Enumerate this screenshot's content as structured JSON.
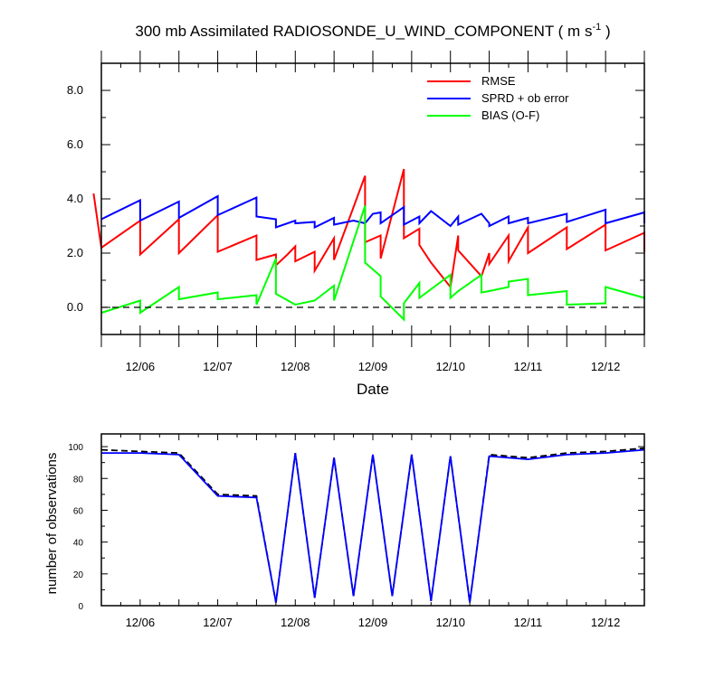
{
  "chart_data": [
    {
      "type": "line",
      "title_prefix": "300 mb Assimilated RADIOSONDE_U_WIND_COMPONENT ( m s",
      "title_superscript": "-1",
      "title_suffix": " )",
      "xlabel": "Date",
      "ylabel": "",
      "xlim": [
        0,
        14
      ],
      "ylim": [
        -1,
        9
      ],
      "yticks": [
        0.0,
        2.0,
        4.0,
        6.0,
        8.0
      ],
      "ytick_labels": [
        "0.0",
        "2.0",
        "4.0",
        "6.0",
        "8.0"
      ],
      "xticks": [
        1,
        3,
        5,
        7,
        9,
        11,
        13
      ],
      "xtick_labels": [
        "12/06",
        "12/07",
        "12/08",
        "12/09",
        "12/10",
        "12/11",
        "12/12"
      ],
      "zero_line": true,
      "legend": [
        "RMSE",
        "SPRD + ob error",
        "BIAS (O-F)"
      ],
      "legend_position": "top-right",
      "series": [
        {
          "name": "RMSE",
          "color": "#ff0000",
          "points": [
            [
              -0.2,
              4.2
            ],
            [
              0,
              2.2
            ],
            [
              1,
              3.2
            ],
            [
              1,
              1.95
            ],
            [
              2,
              3.25
            ],
            [
              2,
              2.0
            ],
            [
              3,
              3.4
            ],
            [
              3,
              2.05
            ],
            [
              4,
              2.65
            ],
            [
              4,
              1.75
            ],
            [
              4.5,
              1.95
            ],
            [
              4.5,
              1.55
            ],
            [
              4.8,
              1.95
            ],
            [
              5,
              2.25
            ],
            [
              5,
              1.7
            ],
            [
              5.5,
              2.05
            ],
            [
              5.5,
              1.35
            ],
            [
              6,
              2.55
            ],
            [
              6,
              1.75
            ],
            [
              6.8,
              4.85
            ],
            [
              6.8,
              2.4
            ],
            [
              7.2,
              2.65
            ],
            [
              7.2,
              1.8
            ],
            [
              7.8,
              5.1
            ],
            [
              7.8,
              2.55
            ],
            [
              8.2,
              2.9
            ],
            [
              8.2,
              2.3
            ],
            [
              8.5,
              1.65
            ],
            [
              9,
              0.75
            ],
            [
              9.2,
              2.65
            ],
            [
              9.2,
              2.1
            ],
            [
              9.8,
              1.15
            ],
            [
              10,
              2.0
            ],
            [
              10,
              1.6
            ],
            [
              10.5,
              2.65
            ],
            [
              10.5,
              1.7
            ],
            [
              11,
              2.95
            ],
            [
              11,
              2.0
            ],
            [
              12,
              2.95
            ],
            [
              12,
              2.15
            ],
            [
              13,
              3.05
            ],
            [
              13,
              2.1
            ],
            [
              14,
              2.75
            ],
            [
              14,
              2.05
            ]
          ]
        },
        {
          "name": "SPRD + ob error",
          "color": "#0000ff",
          "points": [
            [
              0,
              3.25
            ],
            [
              1,
              3.95
            ],
            [
              1,
              3.2
            ],
            [
              2,
              3.9
            ],
            [
              2,
              3.3
            ],
            [
              3,
              4.1
            ],
            [
              3,
              3.4
            ],
            [
              4,
              4.05
            ],
            [
              4,
              3.35
            ],
            [
              4.5,
              3.25
            ],
            [
              4.5,
              2.95
            ],
            [
              5,
              3.2
            ],
            [
              5,
              3.1
            ],
            [
              5.5,
              3.15
            ],
            [
              5.5,
              2.95
            ],
            [
              6,
              3.3
            ],
            [
              6,
              3.05
            ],
            [
              6.5,
              3.2
            ],
            [
              6.8,
              3.1
            ],
            [
              7,
              3.45
            ],
            [
              7.2,
              3.5
            ],
            [
              7.2,
              3.1
            ],
            [
              7.8,
              3.7
            ],
            [
              7.8,
              3.05
            ],
            [
              8.2,
              3.35
            ],
            [
              8.2,
              3.1
            ],
            [
              8.5,
              3.55
            ],
            [
              9,
              3.0
            ],
            [
              9.2,
              3.35
            ],
            [
              9.2,
              3.05
            ],
            [
              9.8,
              3.45
            ],
            [
              10,
              3.1
            ],
            [
              10,
              3.0
            ],
            [
              10.5,
              3.35
            ],
            [
              10.5,
              3.1
            ],
            [
              11,
              3.3
            ],
            [
              11,
              3.1
            ],
            [
              12,
              3.45
            ],
            [
              12,
              3.15
            ],
            [
              13,
              3.6
            ],
            [
              13,
              3.1
            ],
            [
              14,
              3.5
            ],
            [
              14,
              3.1
            ]
          ]
        },
        {
          "name": "BIAS (O-F)",
          "color": "#00ff00",
          "points": [
            [
              0,
              -0.2
            ],
            [
              1,
              0.25
            ],
            [
              1,
              -0.2
            ],
            [
              2,
              0.75
            ],
            [
              2,
              0.3
            ],
            [
              3,
              0.55
            ],
            [
              3,
              0.3
            ],
            [
              4,
              0.45
            ],
            [
              4,
              0.1
            ],
            [
              4.5,
              1.8
            ],
            [
              4.5,
              0.5
            ],
            [
              5,
              0.1
            ],
            [
              5.5,
              0.25
            ],
            [
              6,
              0.8
            ],
            [
              6,
              0.25
            ],
            [
              6.8,
              3.75
            ],
            [
              6.8,
              1.65
            ],
            [
              7.2,
              1.15
            ],
            [
              7.2,
              0.4
            ],
            [
              7.8,
              -0.45
            ],
            [
              7.8,
              0.15
            ],
            [
              8.2,
              0.9
            ],
            [
              8.2,
              0.35
            ],
            [
              9,
              1.2
            ],
            [
              9,
              0.35
            ],
            [
              9.2,
              0.6
            ],
            [
              9.8,
              1.2
            ],
            [
              9.8,
              0.55
            ],
            [
              10,
              0.6
            ],
            [
              10.5,
              0.75
            ],
            [
              10.5,
              0.95
            ],
            [
              11,
              1.05
            ],
            [
              11,
              0.45
            ],
            [
              12,
              0.6
            ],
            [
              12,
              0.1
            ],
            [
              13,
              0.15
            ],
            [
              13,
              0.75
            ],
            [
              14,
              0.35
            ],
            [
              14,
              0.4
            ]
          ]
        }
      ]
    },
    {
      "type": "line",
      "title": "",
      "xlabel": "",
      "ylabel": "number of observations",
      "xlim": [
        0,
        14
      ],
      "ylim": [
        0,
        108
      ],
      "yticks": [
        0,
        20,
        40,
        60,
        80,
        100
      ],
      "ytick_labels": [
        "0",
        "20",
        "40",
        "60",
        "80",
        "100"
      ],
      "xticks": [
        1,
        3,
        5,
        7,
        9,
        11,
        13
      ],
      "xtick_labels": [
        "12/06",
        "12/07",
        "12/08",
        "12/09",
        "12/10",
        "12/11",
        "12/12"
      ],
      "series": [
        {
          "name": "observations (dashed)",
          "color": "#000000",
          "style": "dashed",
          "points": [
            [
              0,
              98
            ],
            [
              1,
              97
            ],
            [
              2,
              96
            ],
            [
              3,
              70
            ],
            [
              4,
              69
            ],
            [
              4.5,
              2
            ],
            [
              5,
              96
            ],
            [
              5.5,
              5
            ],
            [
              6,
              93
            ],
            [
              6.5,
              6
            ],
            [
              7,
              95
            ],
            [
              7.5,
              6
            ],
            [
              8,
              95
            ],
            [
              8.5,
              3
            ],
            [
              9,
              94
            ],
            [
              9.5,
              2
            ],
            [
              10,
              95
            ],
            [
              11,
              93
            ],
            [
              12,
              96
            ],
            [
              13,
              97
            ],
            [
              14,
              99
            ]
          ]
        },
        {
          "name": "observations (solid)",
          "color": "#0000ff",
          "style": "solid",
          "points": [
            [
              0,
              96
            ],
            [
              1,
              96
            ],
            [
              2,
              95
            ],
            [
              3,
              69
            ],
            [
              4,
              68
            ],
            [
              4.5,
              2
            ],
            [
              5,
              96
            ],
            [
              5.5,
              5
            ],
            [
              6,
              93
            ],
            [
              6.5,
              6
            ],
            [
              7,
              95
            ],
            [
              7.5,
              6
            ],
            [
              8,
              95
            ],
            [
              8.5,
              3
            ],
            [
              9,
              94
            ],
            [
              9.5,
              2
            ],
            [
              10,
              94
            ],
            [
              11,
              92
            ],
            [
              12,
              95
            ],
            [
              13,
              96
            ],
            [
              14,
              98
            ]
          ]
        }
      ]
    }
  ]
}
